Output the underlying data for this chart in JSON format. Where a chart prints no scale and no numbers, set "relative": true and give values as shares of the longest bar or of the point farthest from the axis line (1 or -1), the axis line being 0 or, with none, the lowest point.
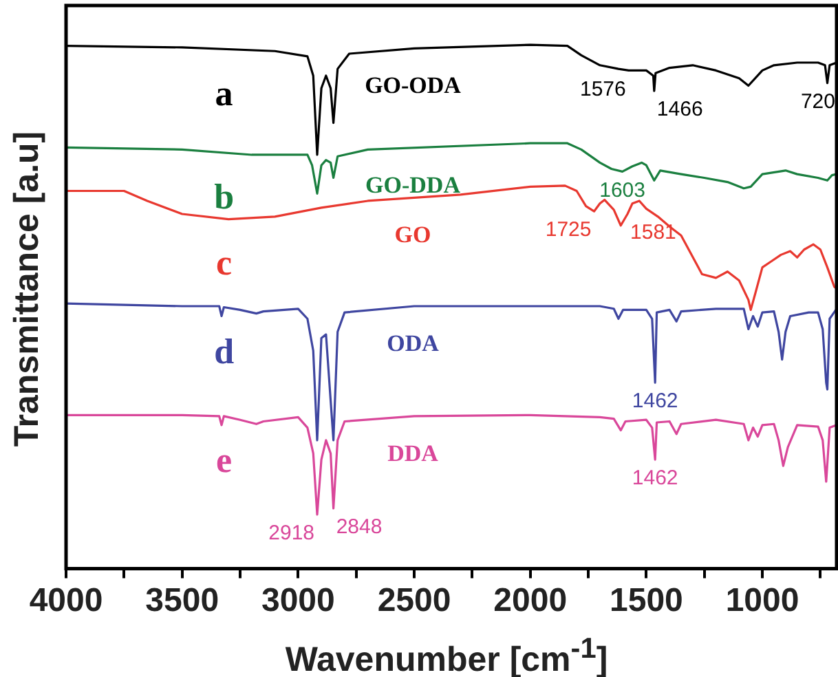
{
  "chart_data": {
    "type": "line",
    "relative": true,
    "xlabel": "Wavenumber [cm$^{-1}$]",
    "ylabel": "Transmittance [a.u]",
    "xlim": [
      4000,
      680
    ],
    "xticks": [
      4000,
      {
        "value": 3750,
        "label": null
      },
      3500,
      {
        "value": 3250,
        "label": null
      },
      3000,
      {
        "value": 2750,
        "label": null
      },
      2500,
      {
        "value": 2250,
        "label": null
      },
      2000,
      {
        "value": 1750,
        "label": null
      },
      1500,
      {
        "value": 1250,
        "label": null
      },
      1000,
      {
        "value": 750,
        "label": null
      }
    ],
    "grid": false,
    "legend": false,
    "marker": "none",
    "series": [
      {
        "name": "GO-ODA",
        "color": "#000000",
        "x": [
          4000,
          3500,
          3100,
          2960,
          2935,
          2918,
          2900,
          2880,
          2860,
          2848,
          2830,
          2780,
          2500,
          2000,
          1840,
          1780,
          1700,
          1620,
          1576,
          1500,
          1470,
          1466,
          1460,
          1400,
          1300,
          1200,
          1100,
          1060,
          1000,
          950,
          850,
          760,
          730,
          720,
          710,
          680
        ],
        "values": [
          0.998,
          0.995,
          0.988,
          0.978,
          0.941,
          0.79,
          0.917,
          0.941,
          0.917,
          0.851,
          0.954,
          0.983,
          0.993,
          1,
          0.998,
          0.98,
          0.961,
          0.954,
          0.951,
          0.951,
          0.941,
          0.912,
          0.946,
          0.956,
          0.961,
          0.951,
          0.936,
          0.922,
          0.951,
          0.961,
          0.966,
          0.966,
          0.961,
          0.927,
          0.961,
          0.966
        ]
      },
      {
        "name": "GO-DDA",
        "color": "#1a7f3f",
        "x": [
          4000,
          3500,
          3200,
          2960,
          2940,
          2918,
          2900,
          2880,
          2860,
          2848,
          2830,
          2700,
          2000,
          1840,
          1780,
          1700,
          1650,
          1603,
          1560,
          1520,
          1500,
          1466,
          1440,
          1350,
          1250,
          1150,
          1080,
          1050,
          1000,
          900,
          850,
          760,
          720,
          700,
          680
        ],
        "values": [
          0.804,
          0.8,
          0.79,
          0.79,
          0.77,
          0.716,
          0.77,
          0.78,
          0.775,
          0.746,
          0.787,
          0.8,
          0.812,
          0.812,
          0.8,
          0.775,
          0.763,
          0.758,
          0.768,
          0.775,
          0.77,
          0.741,
          0.76,
          0.753,
          0.746,
          0.738,
          0.726,
          0.729,
          0.753,
          0.76,
          0.753,
          0.746,
          0.741,
          0.751,
          0.753
        ]
      },
      {
        "name": "GO",
        "color": "#e8382f",
        "x": [
          4000,
          3750,
          3650,
          3500,
          3300,
          3100,
          2900,
          2700,
          2300,
          2000,
          1850,
          1800,
          1760,
          1725,
          1700,
          1680,
          1640,
          1610,
          1581,
          1560,
          1530,
          1500,
          1450,
          1400,
          1350,
          1260,
          1200,
          1150,
          1100,
          1060,
          1050,
          1030,
          1000,
          960,
          920,
          880,
          850,
          820,
          780,
          750,
          720,
          690,
          680
        ],
        "values": [
          0.721,
          0.721,
          0.702,
          0.677,
          0.667,
          0.672,
          0.689,
          0.702,
          0.714,
          0.729,
          0.731,
          0.721,
          0.692,
          0.682,
          0.697,
          0.704,
          0.685,
          0.655,
          0.677,
          0.697,
          0.702,
          0.687,
          0.672,
          0.653,
          0.636,
          0.562,
          0.555,
          0.567,
          0.55,
          0.513,
          0.494,
          0.526,
          0.575,
          0.587,
          0.599,
          0.606,
          0.594,
          0.609,
          0.619,
          0.609,
          0.575,
          0.538,
          0.535
        ]
      },
      {
        "name": "ODA",
        "color": "#3f46a0",
        "x": [
          4000,
          3500,
          3340,
          3330,
          3320,
          3250,
          3180,
          3150,
          3000,
          2960,
          2935,
          2918,
          2900,
          2880,
          2848,
          2830,
          2800,
          2500,
          2000,
          1700,
          1640,
          1620,
          1600,
          1500,
          1475,
          1462,
          1455,
          1400,
          1370,
          1350,
          1200,
          1080,
          1060,
          1040,
          1020,
          1000,
          950,
          930,
          915,
          900,
          880,
          800,
          760,
          740,
          725,
          720,
          710,
          680
        ],
        "values": [
          0.506,
          0.501,
          0.501,
          0.482,
          0.499,
          0.494,
          0.487,
          0.491,
          0.496,
          0.477,
          0.416,
          0.245,
          0.44,
          0.447,
          0.245,
          0.452,
          0.489,
          0.501,
          0.501,
          0.501,
          0.496,
          0.477,
          0.494,
          0.494,
          0.477,
          0.355,
          0.489,
          0.494,
          0.472,
          0.491,
          0.496,
          0.496,
          0.457,
          0.482,
          0.462,
          0.489,
          0.491,
          0.452,
          0.399,
          0.452,
          0.482,
          0.489,
          0.489,
          0.457,
          0.355,
          0.342,
          0.477,
          0.496
        ]
      },
      {
        "name": "DDA",
        "color": "#d9479a",
        "x": [
          4000,
          3500,
          3340,
          3330,
          3320,
          3250,
          3180,
          3150,
          3000,
          2960,
          2935,
          2918,
          2900,
          2880,
          2860,
          2848,
          2830,
          2800,
          2500,
          2000,
          1700,
          1640,
          1610,
          1590,
          1500,
          1475,
          1462,
          1455,
          1400,
          1370,
          1350,
          1200,
          1080,
          1060,
          1040,
          1020,
          1000,
          950,
          930,
          910,
          890,
          850,
          760,
          740,
          725,
          710,
          680
        ],
        "values": [
          0.293,
          0.293,
          0.291,
          0.274,
          0.291,
          0.284,
          0.276,
          0.281,
          0.289,
          0.269,
          0.22,
          0.103,
          0.208,
          0.245,
          0.22,
          0.115,
          0.245,
          0.281,
          0.291,
          0.293,
          0.289,
          0.286,
          0.264,
          0.281,
          0.284,
          0.269,
          0.208,
          0.279,
          0.281,
          0.257,
          0.276,
          0.284,
          0.276,
          0.245,
          0.269,
          0.252,
          0.274,
          0.276,
          0.245,
          0.196,
          0.232,
          0.274,
          0.271,
          0.245,
          0.166,
          0.269,
          0.274
        ]
      }
    ],
    "annotations": [
      "a",
      "b",
      "c",
      "d",
      "e",
      {
        "text": "1576",
        "x": 1576,
        "y": 0.951
      },
      {
        "text": "1466",
        "x": 1466,
        "y": 0.912
      },
      {
        "text": "720",
        "x": 720,
        "y": 0.927
      },
      {
        "text": "1603",
        "x": 1603,
        "y": 0.758
      },
      {
        "text": "1725",
        "x": 1725,
        "y": 0.682
      },
      {
        "text": "1581",
        "x": 1581,
        "y": 0.677
      },
      {
        "text": "1462",
        "x": 1462,
        "y": 0.355
      },
      {
        "text": "1462",
        "x": 1462,
        "y": 0.208
      },
      {
        "text": "2918",
        "x": 2918,
        "y": 0.103
      },
      {
        "text": "2848",
        "x": 2848,
        "y": 0.115
      }
    ]
  }
}
